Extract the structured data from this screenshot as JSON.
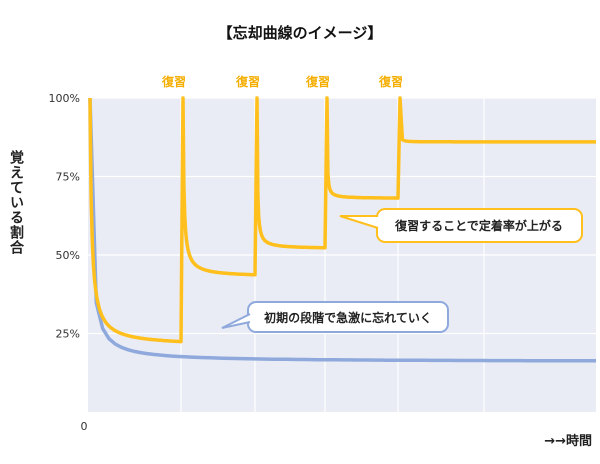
{
  "chart_data": {
    "type": "line",
    "title": "【忘却曲線のイメージ】",
    "xlabel": "→→時間",
    "ylabel": "覚えている割合",
    "ylim": [
      0,
      100
    ],
    "yticks": [
      "100%",
      "75%",
      "50%",
      "25%"
    ],
    "origin_label": "0",
    "grid": true,
    "review_label": "復習",
    "reviews": [
      {
        "label": "復習"
      },
      {
        "label": "復習"
      },
      {
        "label": "復習"
      },
      {
        "label": "復習"
      }
    ],
    "series": [
      {
        "name": "",
        "color": "#8fa9dc",
        "floor": 16,
        "k": 0.55
      },
      {
        "name": "",
        "color": "#ffbf1c",
        "segments": [
          {
            "floor": 21,
            "k": 0.6,
            "end": 29
          },
          {
            "floor": 43,
            "k": 1.1,
            "end": 46
          },
          {
            "floor": 52,
            "k": 2.2,
            "end": 55
          },
          {
            "floor": 68,
            "k": 3.4,
            "end": 72
          },
          {
            "floor": 86,
            "k": 7.5,
            "end": 89
          }
        ]
      }
    ],
    "annotations": [
      {
        "text": "復習することで定着率が上がる"
      },
      {
        "text": "初期の段階で急激に忘れていく"
      }
    ]
  },
  "colors": {
    "plot_bg": "#e9ecf5",
    "gridline": "#ffffff",
    "review": "#f5ae00",
    "yellow_box": "#ffbf1c",
    "blue_box": "#8fa9dc"
  }
}
